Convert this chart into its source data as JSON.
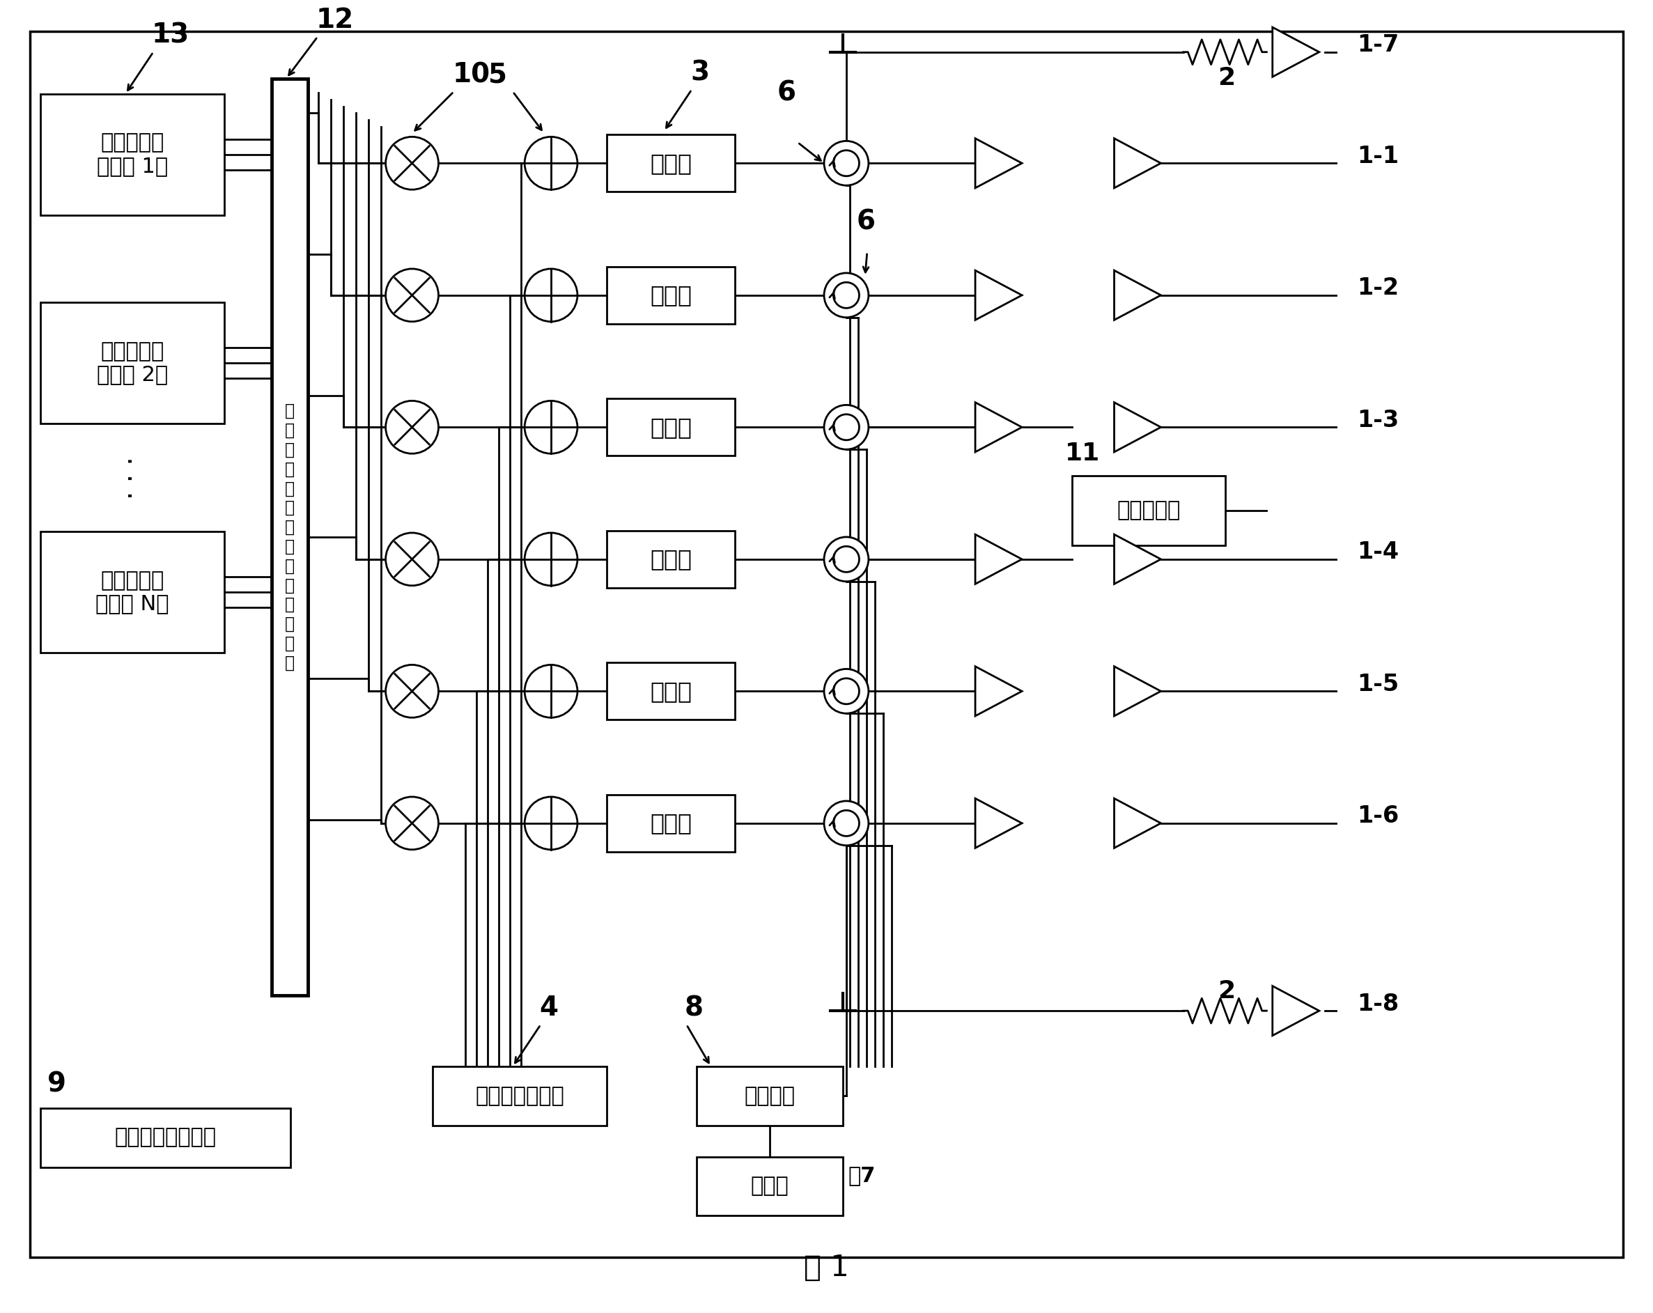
{
  "bg_color": "#ffffff",
  "line_color": "#000000",
  "title": "图 1",
  "beamformer_labels": [
    "波束形成器\n（用户 1）",
    "波束形成器\n（用户 2）",
    "波束形成器\n（用户 N）"
  ],
  "tx_label": "发射机",
  "calib_gen_label": "校准信号发生器",
  "calib_factor_label": "校准因子计算部分",
  "rf_switch_label": "射频开关",
  "receiver_label": "接收机",
  "power_combiner_label": "功率合成器",
  "matrix_text": "分配频率传输部分用户信号路由",
  "ant_labels_right": [
    "1-7",
    "1-1",
    "1-2",
    "1-3",
    "1-4",
    "1-5",
    "1-6",
    "1-8"
  ]
}
